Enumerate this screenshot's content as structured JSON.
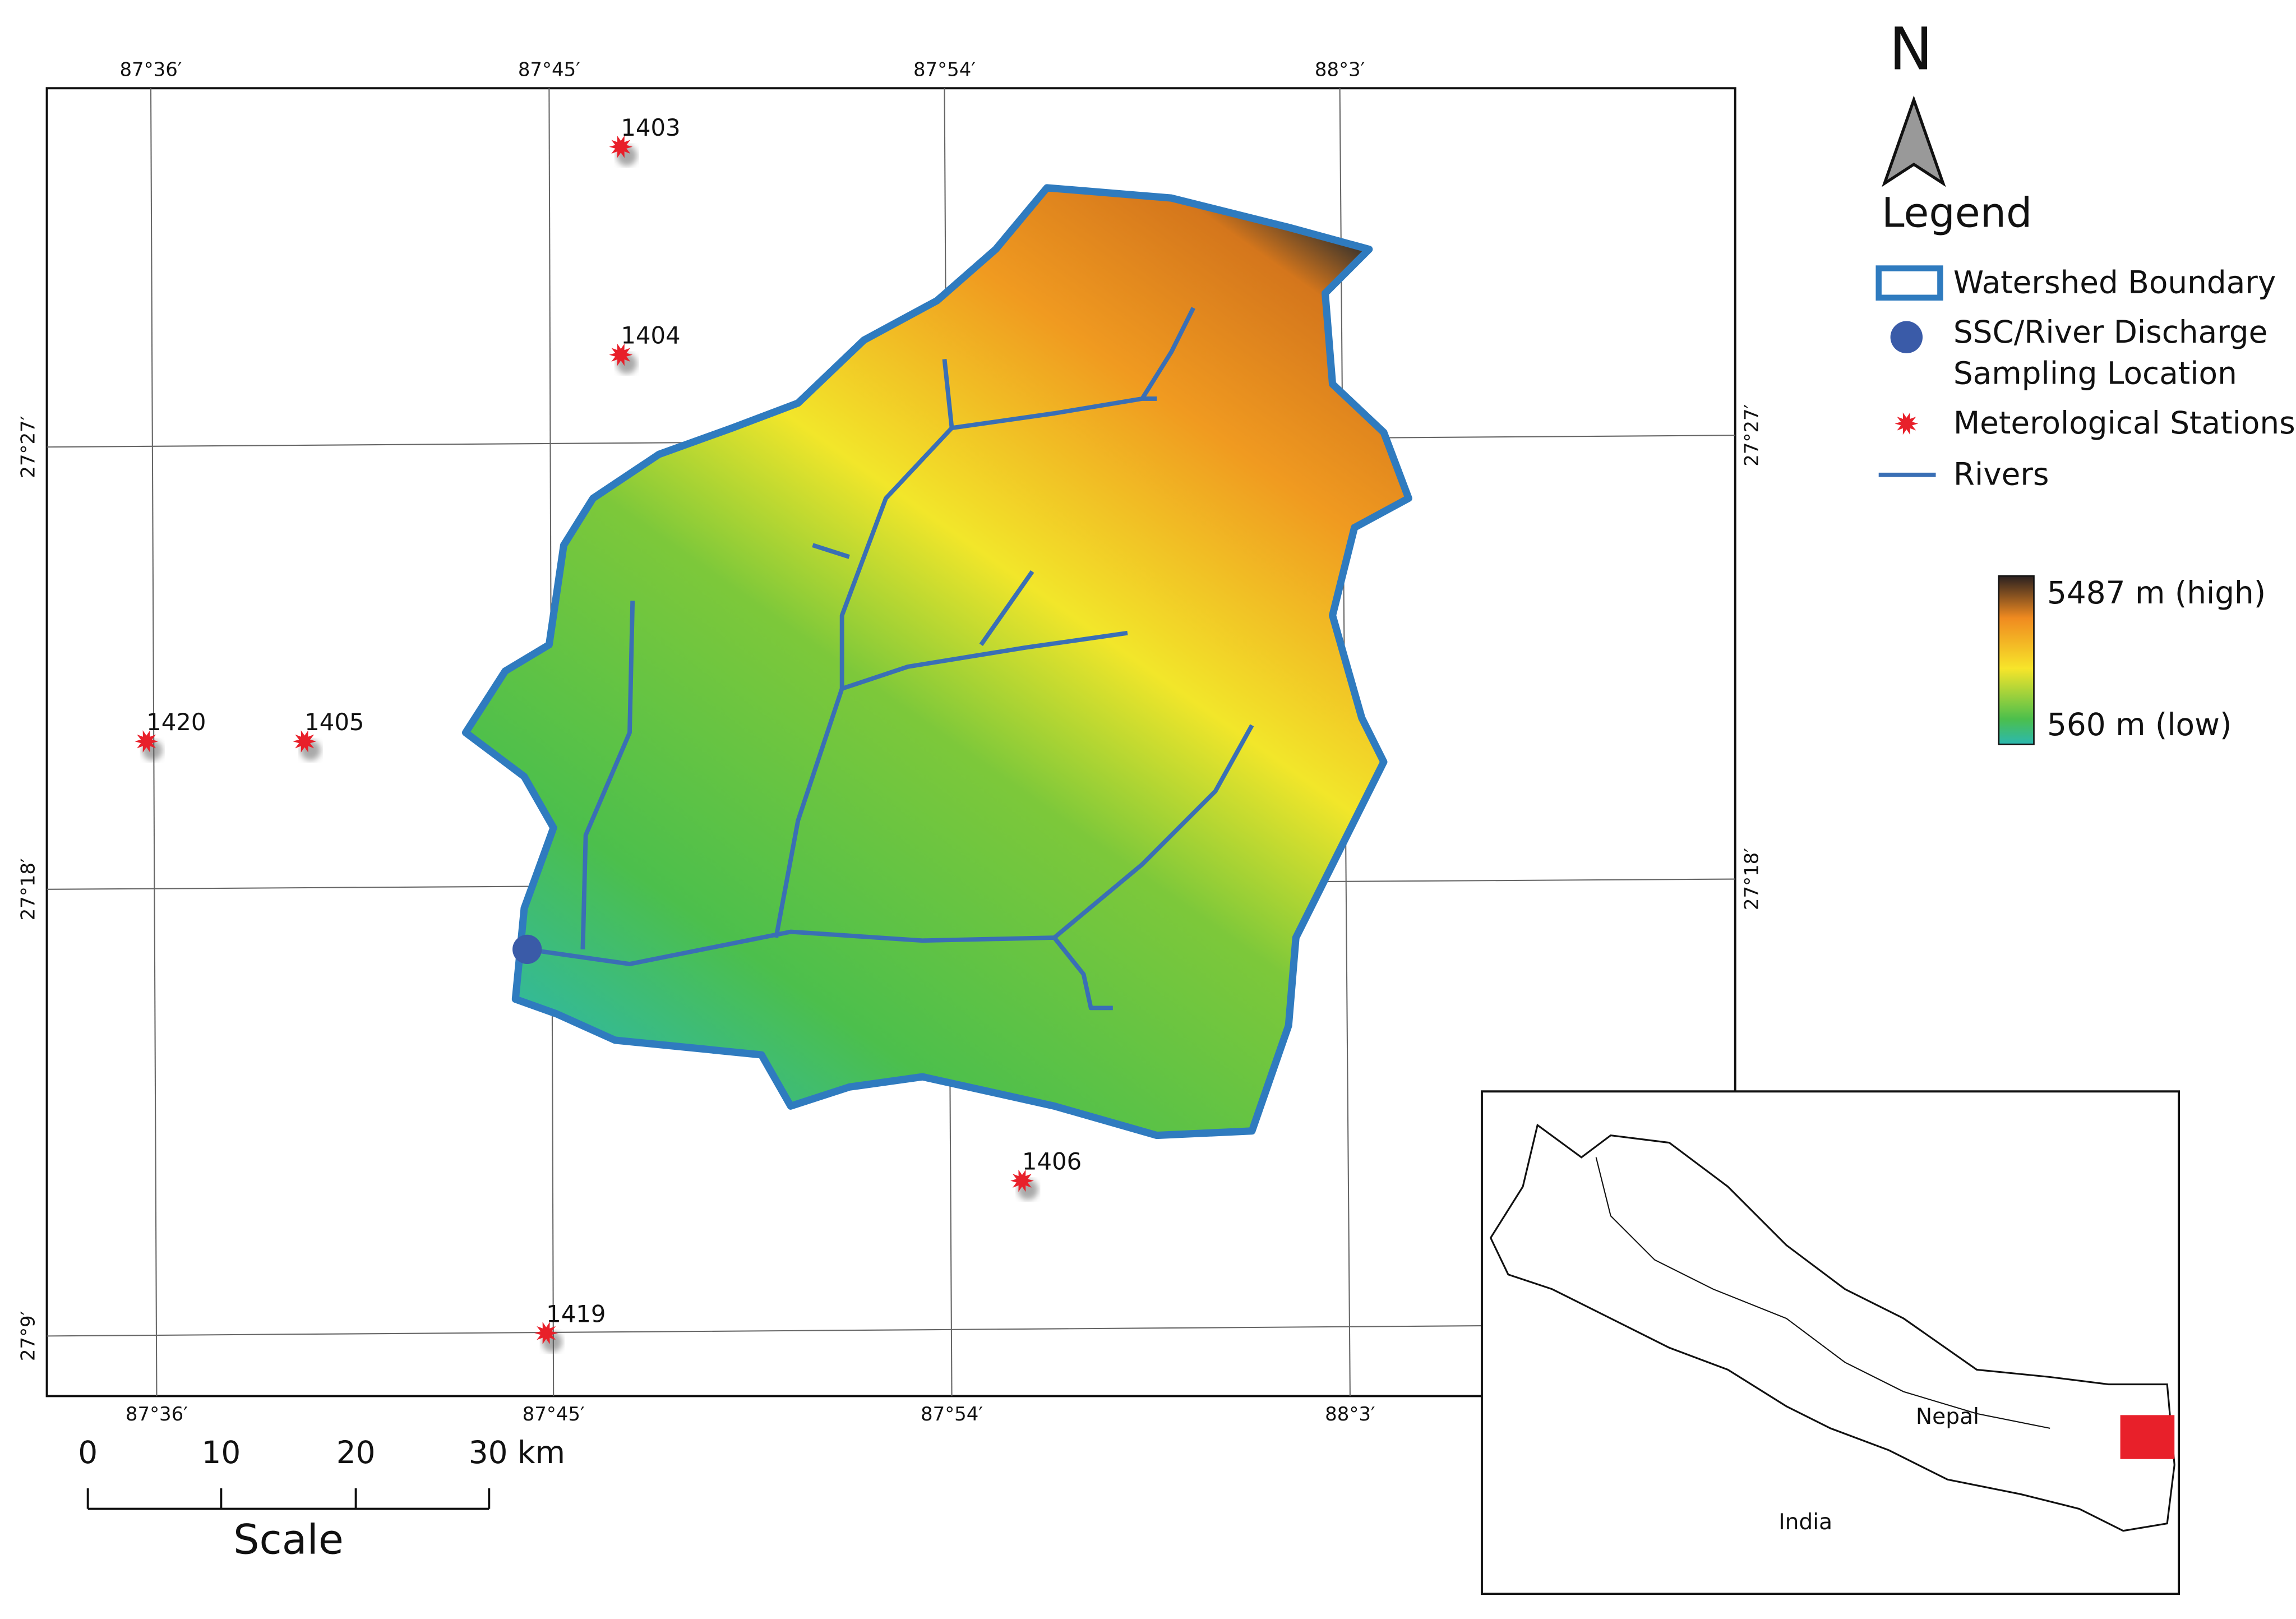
{
  "north": "N",
  "grid": {
    "top": [
      "87°36′",
      "87°45′",
      "87°54′",
      "88°3′"
    ],
    "bottom": [
      "87°36′",
      "87°45′",
      "87°54′",
      "88°3′"
    ],
    "left": [
      "27°27′",
      "27°18′",
      "27°9′"
    ],
    "right": [
      "27°27′",
      "27°18′"
    ]
  },
  "stations": [
    "1403",
    "1404",
    "1420",
    "1405",
    "1406",
    "1419"
  ],
  "legend": {
    "title": "Legend",
    "watershed": "Watershed Boundary",
    "sampling": [
      "SSC/River Discharge",
      "Sampling Location"
    ],
    "stations": "Meterological Stations",
    "rivers": "Rivers"
  },
  "elevation": {
    "high": "5487 m (high)",
    "low": "560 m (low)"
  },
  "scale": {
    "ticks": [
      "0",
      "10",
      "20",
      "30 km"
    ],
    "title": "Scale"
  },
  "inset": {
    "nepal": "Nepal",
    "india": "India"
  }
}
